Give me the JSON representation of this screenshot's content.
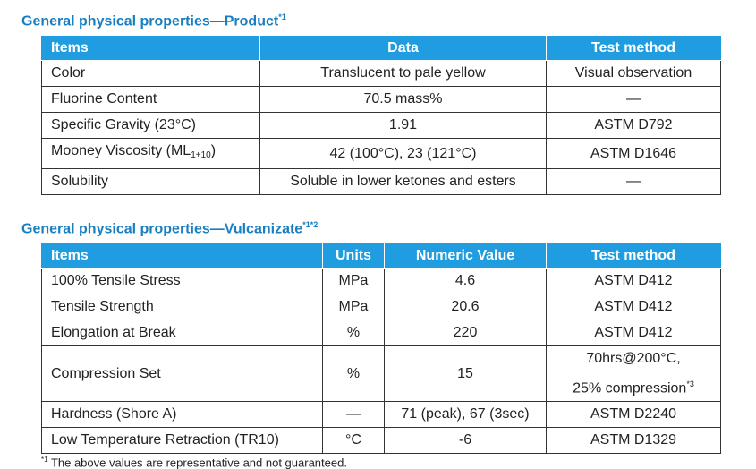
{
  "product": {
    "title": "General physical properties—Product",
    "title_note": "*1",
    "headers": {
      "items": "Items",
      "data": "Data",
      "test": "Test method"
    },
    "rows": [
      {
        "item": "Color",
        "data": "Translucent to pale yellow",
        "test": "Visual observation"
      },
      {
        "item": "Fluorine Content",
        "data": "70.5 mass%",
        "test": "—"
      },
      {
        "item": "Specific Gravity (23°C)",
        "data": "1.91",
        "test": "ASTM D792"
      },
      {
        "item_main": "Mooney Viscosity (ML",
        "item_sub": "1+10",
        "item_end": ")",
        "data": "42 (100°C), 23 (121°C)",
        "test": "ASTM D1646"
      },
      {
        "item": "Solubility",
        "data": "Soluble in lower ketones and esters",
        "test": "—"
      }
    ]
  },
  "vulcanizate": {
    "title": "General physical properties—Vulcanizate",
    "title_note": "*1*2",
    "headers": {
      "items": "Items",
      "units": "Units",
      "value": "Numeric Value",
      "test": "Test method"
    },
    "rows": [
      {
        "item": "100% Tensile Stress",
        "units": "MPa",
        "value": "4.6",
        "test": "ASTM D412"
      },
      {
        "item": "Tensile Strength",
        "units": "MPa",
        "value": "20.6",
        "test": "ASTM D412"
      },
      {
        "item": "Elongation at Break",
        "units": "%",
        "value": "220",
        "test": "ASTM D412"
      },
      {
        "item": "Compression Set",
        "units": "%",
        "value": "15",
        "test_line1": "70hrs@200°C,",
        "test_line2": "25% compression",
        "test_note": "*3"
      },
      {
        "item": "Hardness (Shore A)",
        "units": "—",
        "value": "71 (peak), 67 (3sec)",
        "test": "ASTM D2240"
      },
      {
        "item": "Low Temperature Retraction (TR10)",
        "units": "°C",
        "value": "-6",
        "test": "ASTM D1329"
      }
    ]
  },
  "footnote": {
    "mark": "*1",
    "text": " The above values are representative and not guaranteed."
  }
}
